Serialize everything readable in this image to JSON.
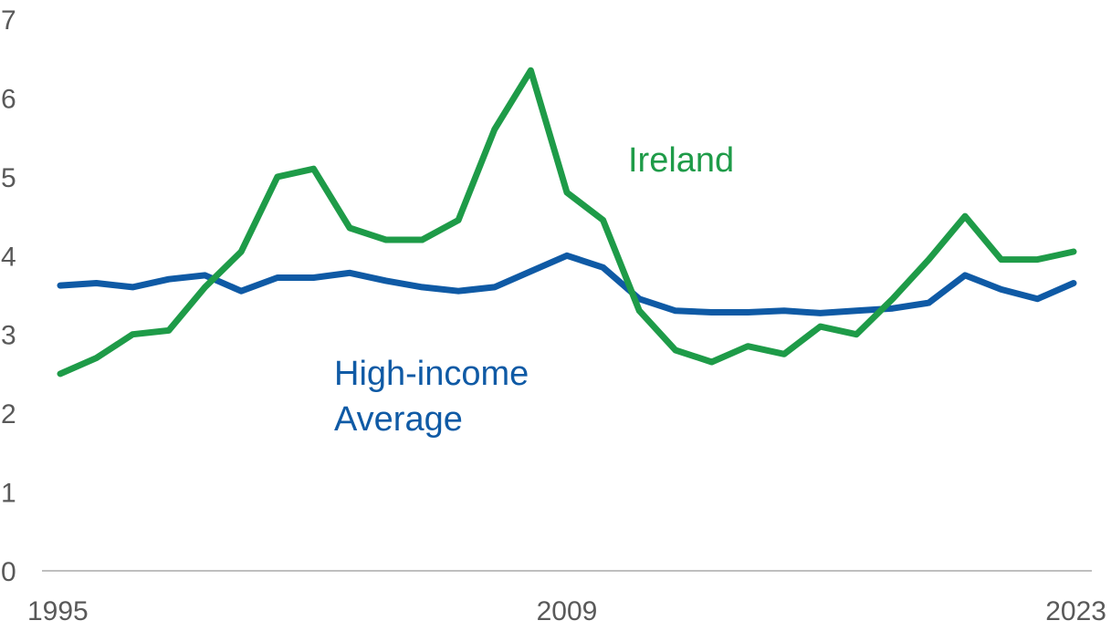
{
  "chart_data": {
    "type": "line",
    "title": "",
    "xlabel": "",
    "ylabel": "",
    "ylim": [
      0,
      7
    ],
    "yticks": [
      "0",
      "1",
      "2",
      "3",
      "4",
      "5",
      "6",
      "7"
    ],
    "xticks": [
      "1995",
      "2009",
      "2023"
    ],
    "grid": false,
    "legend": "none",
    "x": [
      1995,
      1996,
      1997,
      1998,
      1999,
      2000,
      2001,
      2002,
      2003,
      2004,
      2005,
      2006,
      2007,
      2008,
      2009,
      2010,
      2011,
      2012,
      2013,
      2014,
      2015,
      2016,
      2017,
      2018,
      2019,
      2020,
      2021,
      2022,
      2023
    ],
    "series": [
      {
        "name": "Ireland",
        "label_line1": "Ireland",
        "color": "#1e9b48",
        "values": [
          2.5,
          2.7,
          3.0,
          3.05,
          3.6,
          4.05,
          5.0,
          5.1,
          4.35,
          4.2,
          4.2,
          4.45,
          5.6,
          6.35,
          4.8,
          4.45,
          3.3,
          2.8,
          2.65,
          2.85,
          2.75,
          3.1,
          3.0,
          3.45,
          3.95,
          4.5,
          3.95,
          3.95,
          4.05
        ]
      },
      {
        "name": "High-income Average",
        "label_line1": "High-income",
        "label_line2": "Average",
        "color": "#0f5aa5",
        "values": [
          3.62,
          3.65,
          3.6,
          3.7,
          3.75,
          3.55,
          3.72,
          3.72,
          3.78,
          3.68,
          3.6,
          3.55,
          3.6,
          3.8,
          4.0,
          3.85,
          3.45,
          3.3,
          3.28,
          3.28,
          3.3,
          3.27,
          3.3,
          3.33,
          3.4,
          3.75,
          3.57,
          3.45,
          3.65
        ]
      }
    ]
  }
}
